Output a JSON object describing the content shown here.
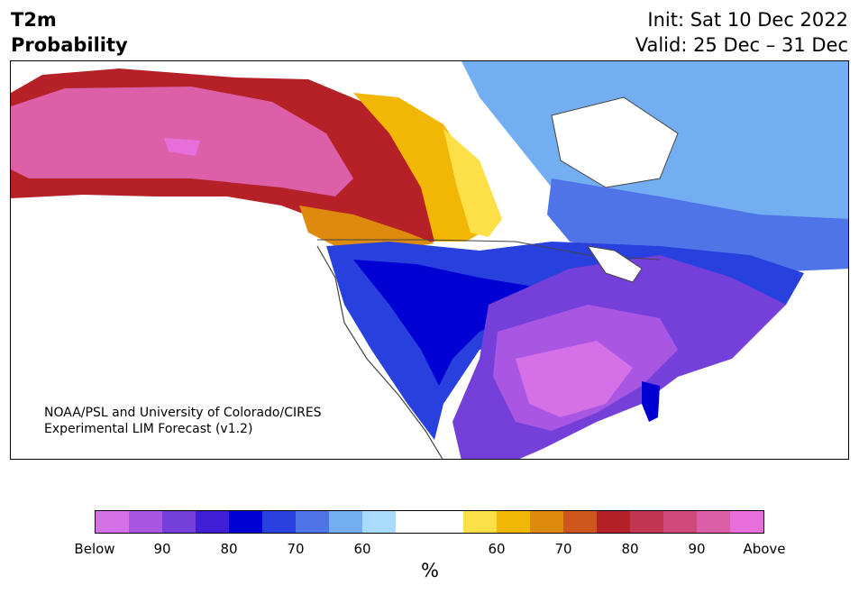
{
  "header": {
    "title_line1": "T2m",
    "title_line2": "Probability",
    "init": "Init: Sat 10 Dec 2022",
    "valid": "Valid: 25 Dec – 31 Dec"
  },
  "credit": {
    "line1": "NOAA/PSL and University of Colorado/CIRES",
    "line2": "Experimental LIM Forecast (v1.2)"
  },
  "colorbar": {
    "colors": [
      "#d670e6",
      "#a957e3",
      "#7440d9",
      "#3e1fd6",
      "#0000d4",
      "#2840de",
      "#4f74e8",
      "#73aef2",
      "#a9dcfb",
      "#ffffff",
      "#ffffff",
      "#fde047",
      "#f2b705",
      "#de8a0c",
      "#cc561b",
      "#b52126",
      "#c23553",
      "#cf4a78",
      "#dd5fa8",
      "#e86fdb"
    ],
    "labels": [
      "Below",
      "90",
      "80",
      "70",
      "60",
      "60",
      "70",
      "80",
      "90",
      "Above"
    ],
    "units": "%"
  },
  "map": {
    "regions": [
      {
        "name": "alaska-yukon",
        "category": "above-90",
        "color": "#dd5fa8"
      },
      {
        "name": "western-canada",
        "category": "above-80",
        "color": "#b52126"
      },
      {
        "name": "prairies",
        "category": "above-60",
        "color": "#f2b705"
      },
      {
        "name": "rockies-west-us",
        "category": "below-80",
        "color": "#0000d4"
      },
      {
        "name": "great-plains-south",
        "category": "below-90",
        "color": "#a957e3"
      },
      {
        "name": "eastern-us",
        "category": "below-80",
        "color": "#7440d9"
      },
      {
        "name": "eastern-canada",
        "category": "below-70",
        "color": "#4f74e8"
      },
      {
        "name": "hudson-region",
        "category": "below-60",
        "color": "#73aef2"
      },
      {
        "name": "florida",
        "category": "below-80",
        "color": "#0000d4"
      }
    ]
  }
}
